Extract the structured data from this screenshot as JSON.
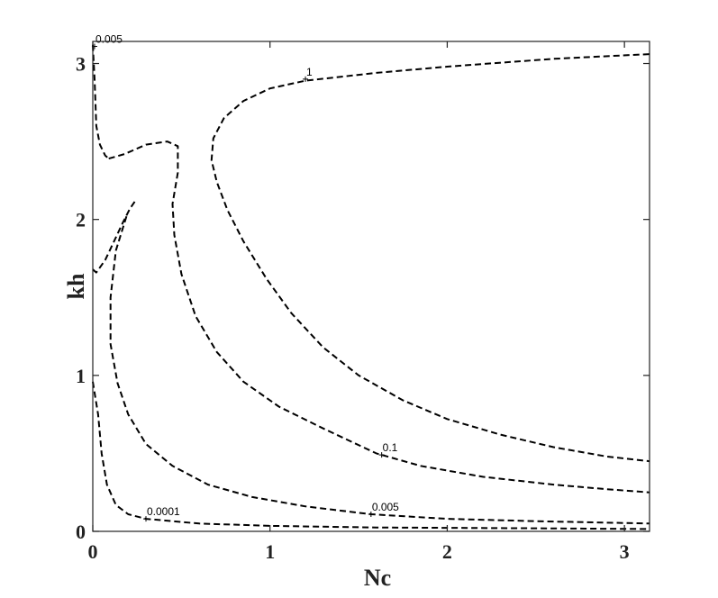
{
  "chart_data": {
    "type": "contour",
    "title": "",
    "xlabel": "Nc",
    "ylabel": "kh",
    "xlim": [
      0,
      3.1416
    ],
    "ylim": [
      0,
      3.1416
    ],
    "xticks": [
      0,
      1,
      2,
      3
    ],
    "yticks": [
      0,
      1,
      2,
      3
    ],
    "xtick_labels": [
      "0",
      "1",
      "2",
      "3"
    ],
    "ytick_labels": [
      "0",
      "1",
      "2",
      "3"
    ],
    "grid": false,
    "box": true,
    "line_style": "dashed",
    "line_color": "#000000",
    "contours": [
      {
        "level_label": "1",
        "label_at": [
          1.2,
          2.9
        ],
        "segments": [
          [
            [
              3.14,
              3.06
            ],
            [
              2.6,
              3.03
            ],
            [
              2.0,
              2.98
            ],
            [
              1.6,
              2.94
            ],
            [
              1.2,
              2.89
            ],
            [
              1.0,
              2.84
            ],
            [
              0.85,
              2.76
            ],
            [
              0.74,
              2.65
            ],
            [
              0.68,
              2.52
            ],
            [
              0.67,
              2.38
            ],
            [
              0.7,
              2.24
            ],
            [
              0.76,
              2.06
            ],
            [
              0.85,
              1.86
            ],
            [
              0.98,
              1.62
            ],
            [
              1.12,
              1.4
            ],
            [
              1.3,
              1.18
            ],
            [
              1.5,
              1.0
            ],
            [
              1.75,
              0.84
            ],
            [
              2.0,
              0.72
            ],
            [
              2.3,
              0.62
            ],
            [
              2.6,
              0.54
            ],
            [
              2.9,
              0.48
            ],
            [
              3.14,
              0.45
            ]
          ]
        ]
      },
      {
        "level_label": "0.1",
        "label_at": [
          1.63,
          0.49
        ],
        "segments": [
          [
            [
              0.09,
              2.39
            ],
            [
              0.18,
              2.42
            ],
            [
              0.3,
              2.48
            ],
            [
              0.42,
              2.5
            ],
            [
              0.48,
              2.47
            ],
            [
              0.48,
              2.3
            ],
            [
              0.45,
              2.1
            ],
            [
              0.46,
              1.9
            ],
            [
              0.5,
              1.65
            ],
            [
              0.58,
              1.38
            ],
            [
              0.7,
              1.15
            ],
            [
              0.85,
              0.96
            ],
            [
              1.05,
              0.8
            ],
            [
              1.3,
              0.66
            ],
            [
              1.6,
              0.5
            ],
            [
              1.85,
              0.42
            ],
            [
              2.2,
              0.35
            ],
            [
              2.6,
              0.3
            ],
            [
              2.9,
              0.27
            ],
            [
              3.14,
              0.25
            ]
          ]
        ]
      },
      {
        "level_label": "0.005",
        "label_at": [
          1.57,
          0.11
        ],
        "segments": [
          [
            [
              0.0,
              1.68
            ],
            [
              0.02,
              1.66
            ],
            [
              0.07,
              1.74
            ],
            [
              0.12,
              1.86
            ],
            [
              0.17,
              1.98
            ],
            [
              0.21,
              2.07
            ],
            [
              0.24,
              2.12
            ]
          ],
          [
            [
              0.19,
              2.02
            ],
            [
              0.13,
              1.8
            ],
            [
              0.1,
              1.5
            ],
            [
              0.1,
              1.2
            ],
            [
              0.14,
              0.95
            ],
            [
              0.2,
              0.75
            ],
            [
              0.3,
              0.56
            ],
            [
              0.45,
              0.42
            ],
            [
              0.65,
              0.3
            ],
            [
              0.9,
              0.22
            ],
            [
              1.2,
              0.16
            ],
            [
              1.57,
              0.11
            ],
            [
              2.0,
              0.08
            ],
            [
              2.5,
              0.065
            ],
            [
              3.14,
              0.05
            ]
          ]
        ]
      },
      {
        "level_label": "0.0001",
        "label_at": [
          0.3,
          0.08
        ],
        "segments": [
          [
            [
              0.0,
              0.96
            ],
            [
              0.03,
              0.75
            ],
            [
              0.05,
              0.5
            ],
            [
              0.08,
              0.3
            ],
            [
              0.13,
              0.17
            ],
            [
              0.2,
              0.11
            ],
            [
              0.3,
              0.08
            ],
            [
              0.6,
              0.05
            ],
            [
              1.0,
              0.035
            ],
            [
              1.6,
              0.025
            ],
            [
              2.4,
              0.02
            ],
            [
              3.14,
              0.015
            ]
          ]
        ]
      },
      {
        "level_label": "0.005",
        "label_at": [
          0.01,
          3.11
        ],
        "segments": [
          [
            [
              0.0,
              3.12
            ],
            [
              0.01,
              2.9
            ],
            [
              0.02,
              2.6
            ],
            [
              0.04,
              2.48
            ],
            [
              0.07,
              2.41
            ],
            [
              0.09,
              2.39
            ]
          ]
        ]
      }
    ]
  }
}
